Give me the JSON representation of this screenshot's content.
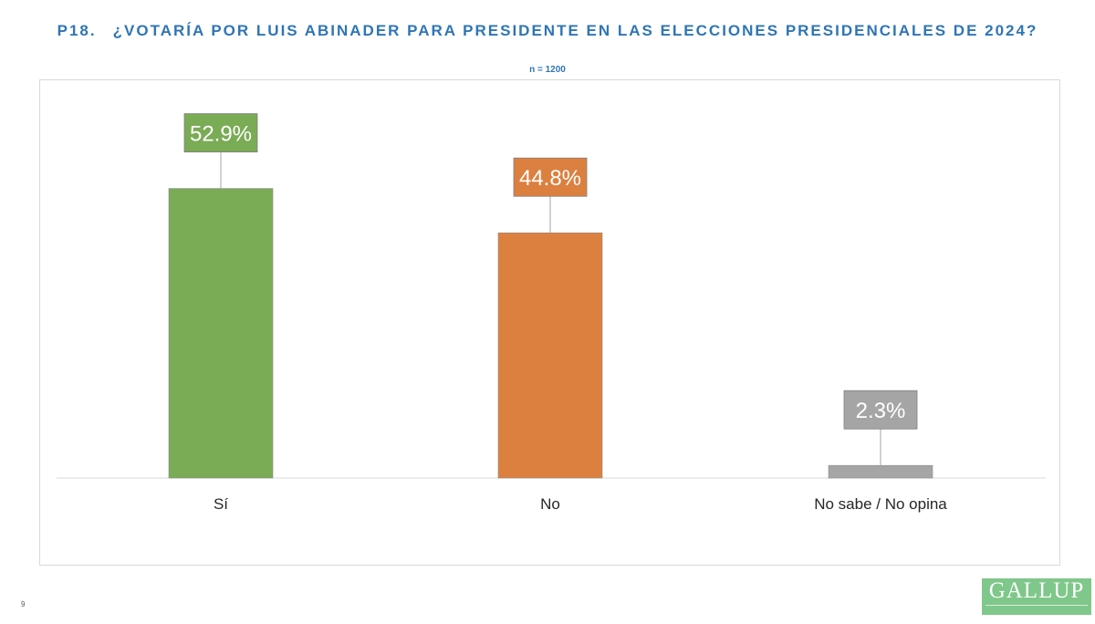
{
  "header": {
    "question_number": "P18.",
    "question_text": "¿VOTARÍA POR LUIS ABINADER PARA PRESIDENTE EN LAS ELECCIONES PRESIDENCIALES DE 2024?",
    "sample": "n = 1200"
  },
  "footer": {
    "page_number": "9",
    "logo_text": "GALLUP"
  },
  "chart_data": {
    "type": "bar",
    "title": "¿VOTARÍA POR LUIS ABINADER PARA PRESIDENTE EN LAS ELECCIONES PRESIDENCIALES DE 2024?",
    "categories": [
      "Sí",
      "No",
      "No sabe / No opina"
    ],
    "values": [
      52.9,
      44.8,
      2.3
    ],
    "data_labels": [
      "52.9%",
      "44.8%",
      "2.3%"
    ],
    "colors": [
      "#7aab55",
      "#dc8040",
      "#a5a5a5"
    ],
    "label_text_color": "#ffffff",
    "ylim": [
      0,
      60
    ],
    "grid": false,
    "xlabel": "",
    "ylabel": ""
  }
}
